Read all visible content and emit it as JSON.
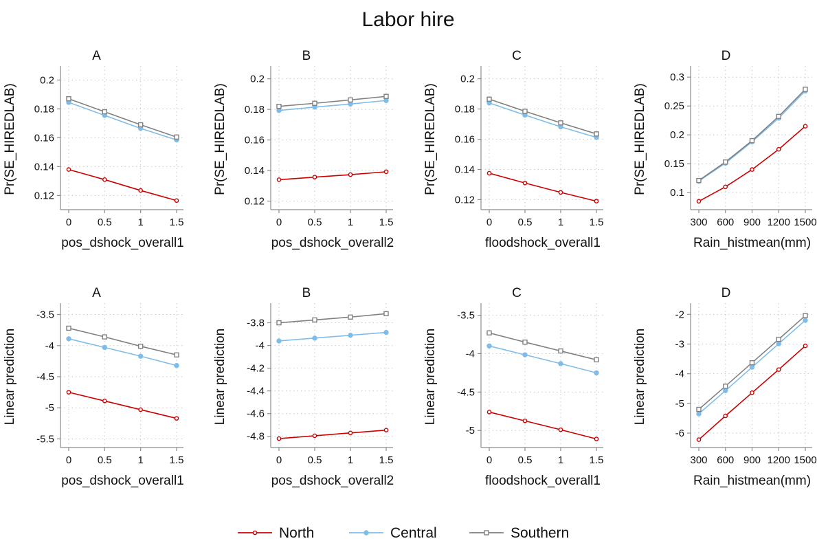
{
  "title": "Labor hire",
  "colors": {
    "North": "#cc0000",
    "Central": "#7fbde8",
    "Southern": "#808080"
  },
  "legend": [
    {
      "name": "North",
      "color": "#cc0000",
      "marker": "circle-open"
    },
    {
      "name": "Central",
      "color": "#7fbde8",
      "marker": "circle-filled"
    },
    {
      "name": "Southern",
      "color": "#808080",
      "marker": "square-open"
    }
  ],
  "chart_data": [
    {
      "type": "line",
      "panel": "A",
      "xlabel": "pos_dshock_overall1",
      "ylabel": "Pr(SE_HIREDLAB)",
      "x": [
        0,
        0.5,
        1,
        1.5
      ],
      "xticks": [
        "0",
        "0.5",
        "1",
        "1.5"
      ],
      "yticks": [
        0.12,
        0.14,
        0.16,
        0.18,
        0.2
      ],
      "ytick_labels": [
        "0.12",
        "0.14",
        "0.16",
        "0.18",
        "0.2"
      ],
      "ylim": [
        0.114,
        0.204
      ],
      "series": [
        {
          "name": "North",
          "values": [
            0.138,
            0.131,
            0.1235,
            0.1165
          ]
        },
        {
          "name": "Central",
          "values": [
            0.1845,
            0.1755,
            0.1665,
            0.1585
          ]
        },
        {
          "name": "Southern",
          "values": [
            0.187,
            0.178,
            0.169,
            0.1605
          ]
        }
      ]
    },
    {
      "type": "line",
      "panel": "B",
      "xlabel": "pos_dshock_overall2",
      "ylabel": "Pr(SE_HIREDLAB)",
      "x": [
        0,
        0.5,
        1,
        1.5
      ],
      "xticks": [
        "0",
        "0.5",
        "1",
        "1.5"
      ],
      "yticks": [
        0.12,
        0.14,
        0.16,
        0.18,
        0.2
      ],
      "ytick_labels": [
        "0.12",
        "0.14",
        "0.16",
        "0.18",
        "0.2"
      ],
      "ylim": [
        0.118,
        0.203
      ],
      "series": [
        {
          "name": "North",
          "values": [
            0.134,
            0.1357,
            0.1373,
            0.1392
          ]
        },
        {
          "name": "Central",
          "values": [
            0.1793,
            0.1815,
            0.1835,
            0.1858
          ]
        },
        {
          "name": "Southern",
          "values": [
            0.182,
            0.184,
            0.1862,
            0.1885
          ]
        }
      ]
    },
    {
      "type": "line",
      "panel": "C",
      "xlabel": "floodshock_overall1",
      "ylabel": "Pr(SE_HIREDLAB)",
      "x": [
        0,
        0.5,
        1,
        1.5
      ],
      "xticks": [
        "0",
        "0.5",
        "1",
        "1.5"
      ],
      "yticks": [
        0.12,
        0.14,
        0.16,
        0.18,
        0.2
      ],
      "ytick_labels": [
        "0.12",
        "0.14",
        "0.16",
        "0.18",
        "0.2"
      ],
      "ylim": [
        0.117,
        0.203
      ],
      "series": [
        {
          "name": "North",
          "values": [
            0.1375,
            0.131,
            0.1248,
            0.119
          ]
        },
        {
          "name": "Central",
          "values": [
            0.184,
            0.176,
            0.1682,
            0.1612
          ]
        },
        {
          "name": "Southern",
          "values": [
            0.1865,
            0.1785,
            0.1708,
            0.1635
          ]
        }
      ]
    },
    {
      "type": "line",
      "panel": "D",
      "xlabel": "Rain_histmean(mm)",
      "ylabel": "Pr(SE_HIREDLAB)",
      "x": [
        300,
        600,
        900,
        1200,
        1500
      ],
      "xticks": [
        "300",
        "600",
        "900",
        "1200",
        "1500"
      ],
      "yticks": [
        0.1,
        0.15,
        0.2,
        0.25,
        0.3
      ],
      "ytick_labels": [
        "0.1",
        "0.15",
        "0.2",
        "0.25",
        "0.3"
      ],
      "ylim": [
        0.08,
        0.305
      ],
      "series": [
        {
          "name": "North",
          "values": [
            0.085,
            0.11,
            0.14,
            0.175,
            0.215
          ]
        },
        {
          "name": "Central",
          "values": [
            0.12,
            0.151,
            0.188,
            0.229,
            0.276
          ]
        },
        {
          "name": "Southern",
          "values": [
            0.121,
            0.153,
            0.19,
            0.232,
            0.279
          ]
        }
      ]
    },
    {
      "type": "line",
      "panel": "A",
      "xlabel": "pos_dshock_overall1",
      "ylabel": "Linear prediction",
      "x": [
        0,
        0.5,
        1,
        1.5
      ],
      "xticks": [
        "0",
        "0.5",
        "1",
        "1.5"
      ],
      "yticks": [
        -5.5,
        -5,
        -4.5,
        -4,
        -3.5
      ],
      "ytick_labels": [
        "-5.5",
        "-5",
        "-4.5",
        "-4",
        "-3.5"
      ],
      "ylim": [
        -5.55,
        -3.45
      ],
      "series": [
        {
          "name": "North",
          "values": [
            -4.75,
            -4.89,
            -5.03,
            -5.17
          ]
        },
        {
          "name": "Central",
          "values": [
            -3.89,
            -4.03,
            -4.17,
            -4.32
          ]
        },
        {
          "name": "Southern",
          "values": [
            -3.72,
            -3.86,
            -4.01,
            -4.15
          ]
        }
      ]
    },
    {
      "type": "line",
      "panel": "B",
      "xlabel": "pos_dshock_overall2",
      "ylabel": "Linear prediction",
      "x": [
        0,
        0.5,
        1,
        1.5
      ],
      "xticks": [
        "0",
        "0.5",
        "1",
        "1.5"
      ],
      "yticks": [
        -4.8,
        -4.6,
        -4.4,
        -4.2,
        -4,
        -3.8
      ],
      "ytick_labels": [
        "-4.8",
        "-4.6",
        "-4.4",
        "-4.2",
        "-4",
        "-3.8"
      ],
      "ylim": [
        -4.85,
        -3.7
      ],
      "series": [
        {
          "name": "North",
          "values": [
            -4.82,
            -4.795,
            -4.77,
            -4.745
          ]
        },
        {
          "name": "Central",
          "values": [
            -3.96,
            -3.935,
            -3.91,
            -3.885
          ]
        },
        {
          "name": "Southern",
          "values": [
            -3.8,
            -3.775,
            -3.75,
            -3.72
          ]
        }
      ]
    },
    {
      "type": "line",
      "panel": "C",
      "xlabel": "floodshock_overall1",
      "ylabel": "Linear prediction",
      "x": [
        0,
        0.5,
        1,
        1.5
      ],
      "xticks": [
        "0",
        "0.5",
        "1",
        "1.5"
      ],
      "yticks": [
        -5,
        -4.5,
        -4,
        -3.5
      ],
      "ytick_labels": [
        "-5",
        "-4.5",
        "-4",
        "-3.5"
      ],
      "ylim": [
        -5.15,
        -3.45
      ],
      "series": [
        {
          "name": "North",
          "values": [
            -4.76,
            -4.875,
            -4.99,
            -5.11
          ]
        },
        {
          "name": "Central",
          "values": [
            -3.9,
            -4.015,
            -4.13,
            -4.25
          ]
        },
        {
          "name": "Southern",
          "values": [
            -3.73,
            -3.85,
            -3.965,
            -4.08
          ]
        }
      ]
    },
    {
      "type": "line",
      "panel": "D",
      "xlabel": "Rain_histmean(mm)",
      "ylabel": "Linear prediction",
      "x": [
        300,
        600,
        900,
        1200,
        1500
      ],
      "xticks": [
        "300",
        "600",
        "900",
        "1200",
        "1500"
      ],
      "yticks": [
        -6,
        -5,
        -4,
        -3,
        -2
      ],
      "ytick_labels": [
        "-6",
        "-5",
        "-4",
        "-3",
        "-2"
      ],
      "ylim": [
        -6.3,
        -1.9
      ],
      "series": [
        {
          "name": "North",
          "values": [
            -6.22,
            -5.42,
            -4.64,
            -3.86,
            -3.06
          ]
        },
        {
          "name": "Central",
          "values": [
            -5.35,
            -4.57,
            -3.78,
            -2.99,
            -2.2
          ]
        },
        {
          "name": "Southern",
          "values": [
            -5.2,
            -4.42,
            -3.63,
            -2.84,
            -2.04
          ]
        }
      ]
    }
  ]
}
